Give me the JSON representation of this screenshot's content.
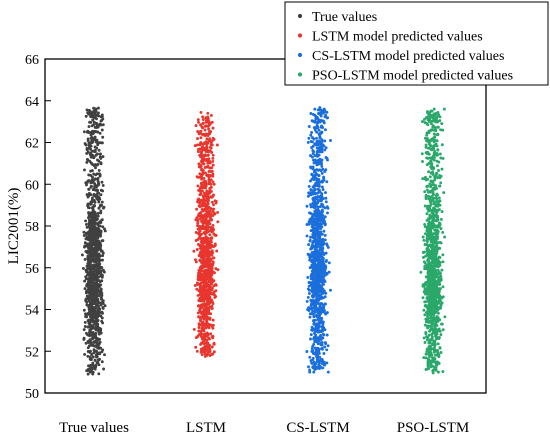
{
  "chart_data": {
    "type": "scatter",
    "title": "",
    "xlabel": "",
    "ylabel": "LIC2001(%)",
    "ylim": [
      50,
      66
    ],
    "yticks": [
      50,
      52,
      54,
      56,
      58,
      60,
      62,
      64,
      66
    ],
    "categories": [
      "True values",
      "LSTM",
      "CS-LSTM",
      "PSO-LSTM"
    ],
    "legend_position": "top-right",
    "grid": false,
    "series": [
      {
        "name": "True values",
        "category": "True values",
        "color": "#404040",
        "value_range": [
          50.9,
          63.7
        ],
        "values": [
          51.0,
          51.5,
          52.0,
          52.4,
          52.8,
          53.2,
          53.5,
          53.8,
          54.0,
          54.2,
          54.4,
          54.6,
          54.8,
          55.0,
          55.1,
          55.3,
          55.5,
          55.6,
          55.8,
          56.0,
          56.2,
          56.4,
          56.6,
          56.8,
          57.0,
          57.2,
          57.4,
          57.6,
          57.8,
          58.0,
          58.3,
          58.6,
          59.0,
          59.5,
          60.0,
          60.5,
          61.0,
          61.6,
          62.2,
          62.8,
          63.3,
          63.6
        ]
      },
      {
        "name": "LSTM model predicted values",
        "category": "LSTM",
        "color": "#e8362e",
        "value_range": [
          51.7,
          63.5
        ],
        "values": [
          51.8,
          52.2,
          52.7,
          53.1,
          53.5,
          53.9,
          54.2,
          54.5,
          54.7,
          54.9,
          55.1,
          55.3,
          55.5,
          55.7,
          55.9,
          56.1,
          56.3,
          56.5,
          56.7,
          56.9,
          57.1,
          57.3,
          57.6,
          57.9,
          58.2,
          58.5,
          58.8,
          59.1,
          59.5,
          60.0,
          60.5,
          61.0,
          61.6,
          62.2,
          62.8,
          63.3
        ]
      },
      {
        "name": "CS-LSTM model predicted values",
        "category": "CS-LSTM",
        "color": "#1a6fdc",
        "value_range": [
          51.0,
          63.7
        ],
        "values": [
          51.1,
          51.6,
          52.1,
          52.6,
          53.0,
          53.4,
          53.8,
          54.1,
          54.4,
          54.7,
          54.9,
          55.1,
          55.3,
          55.5,
          55.7,
          55.9,
          56.1,
          56.3,
          56.5,
          56.7,
          57.0,
          57.3,
          57.6,
          57.9,
          58.2,
          58.5,
          58.8,
          59.2,
          59.6,
          60.1,
          60.7,
          61.3,
          61.9,
          62.5,
          63.1,
          63.6
        ]
      },
      {
        "name": "PSO-LSTM model predicted values",
        "category": "PSO-LSTM",
        "color": "#2aa86a",
        "value_range": [
          50.9,
          63.6
        ],
        "values": [
          51.0,
          51.5,
          52.0,
          52.5,
          52.9,
          53.3,
          53.6,
          53.9,
          54.2,
          54.4,
          54.6,
          54.8,
          55.0,
          55.2,
          55.4,
          55.6,
          55.8,
          56.0,
          56.2,
          56.4,
          56.6,
          56.8,
          57.1,
          57.4,
          57.7,
          58.0,
          58.4,
          58.8,
          59.3,
          59.8,
          60.4,
          61.0,
          61.7,
          62.4,
          63.0,
          63.5
        ]
      }
    ]
  }
}
